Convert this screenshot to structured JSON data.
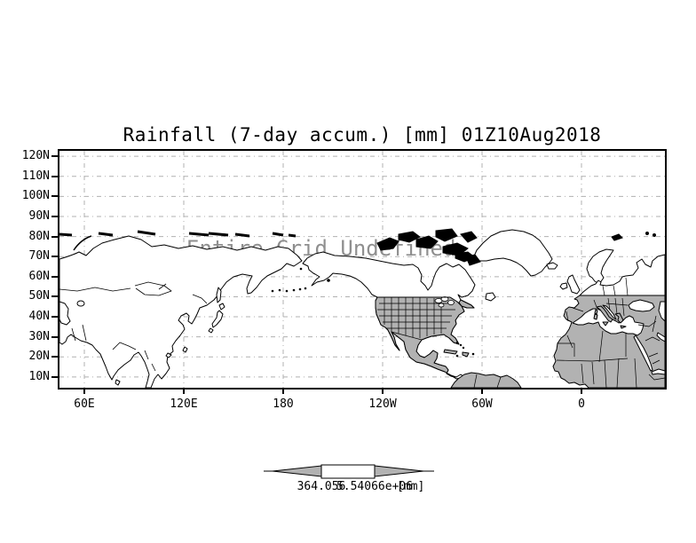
{
  "title": "Rainfall (7-day accum.) [mm] 01Z10Aug2018",
  "map_overlay": {
    "message": "Entire Grid Undefined"
  },
  "y_axis": {
    "labels": [
      "120N",
      "110N",
      "100N",
      "90N",
      "80N",
      "70N",
      "60N",
      "50N",
      "40N",
      "30N",
      "20N",
      "10N"
    ]
  },
  "x_axis": {
    "labels": [
      "60E",
      "120E",
      "180",
      "120W",
      "60W",
      "0"
    ]
  },
  "colorbar": {
    "left_label": "364.056",
    "right_label": "5.54066e+06",
    "unit": "[mm]"
  },
  "colors": {
    "land_shaded": "#b2b2b2",
    "land_unshaded": "#ffffff",
    "outline": "#000000",
    "gridline": "#b0b0b0",
    "overlay_text": "#8f8f8f",
    "colorbar_triangle": "#b2b2b2"
  },
  "chart_data": {
    "type": "heatmap",
    "title": "Rainfall (7-day accum.) [mm] 01Z10Aug2018",
    "variable": "Rainfall (7-day accum.)",
    "units": "mm",
    "valid_time": "01Z10Aug2018",
    "xlabel": "",
    "ylabel": "",
    "x_tick_labels": [
      "60E",
      "120E",
      "180",
      "120W",
      "60W",
      "0"
    ],
    "y_tick_labels": [
      "120N",
      "110N",
      "100N",
      "90N",
      "80N",
      "70N",
      "60N",
      "50N",
      "40N",
      "30N",
      "20N",
      "10N"
    ],
    "x_range_approx": [
      "45E eastward around the globe to 50E"
    ],
    "y_range_approx": [
      "5N",
      "122N"
    ],
    "grid": "dash-dot lat/lon graticule every 10 deg lat, 60 deg lon",
    "values": [],
    "status_message": "Entire Grid Undefined",
    "colorbar_labels": [
      "364.056",
      "5.54066e+06"
    ],
    "colorbar_unit": "[mm]",
    "legend_position": "bottom-center arrow colorbar"
  }
}
